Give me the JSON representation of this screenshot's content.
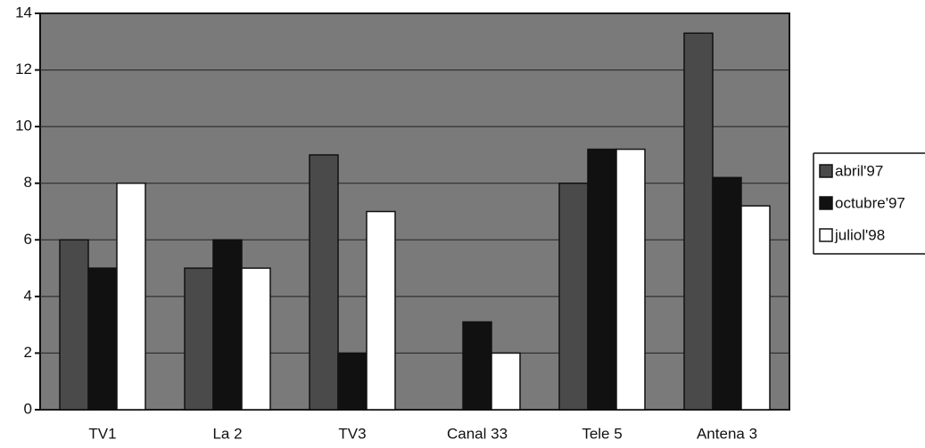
{
  "chart_data": {
    "type": "bar",
    "categories": [
      "TV1",
      "La 2",
      "TV3",
      "Canal 33",
      "Tele 5",
      "Antena 3"
    ],
    "series": [
      {
        "name": "abril'97",
        "color": "#4a4a4a",
        "values": [
          6,
          5,
          9,
          0,
          8,
          13.3
        ]
      },
      {
        "name": "octubre'97",
        "color": "#111111",
        "values": [
          5,
          6,
          2,
          3.1,
          9.2,
          8.2
        ]
      },
      {
        "name": "juliol'98",
        "color": "#ffffff",
        "values": [
          8,
          5,
          7,
          2,
          9.2,
          7.2
        ]
      }
    ],
    "ylim": [
      0,
      14
    ],
    "yticks": [
      0,
      2,
      4,
      6,
      8,
      10,
      12,
      14
    ],
    "grid": true,
    "legend": "right"
  }
}
